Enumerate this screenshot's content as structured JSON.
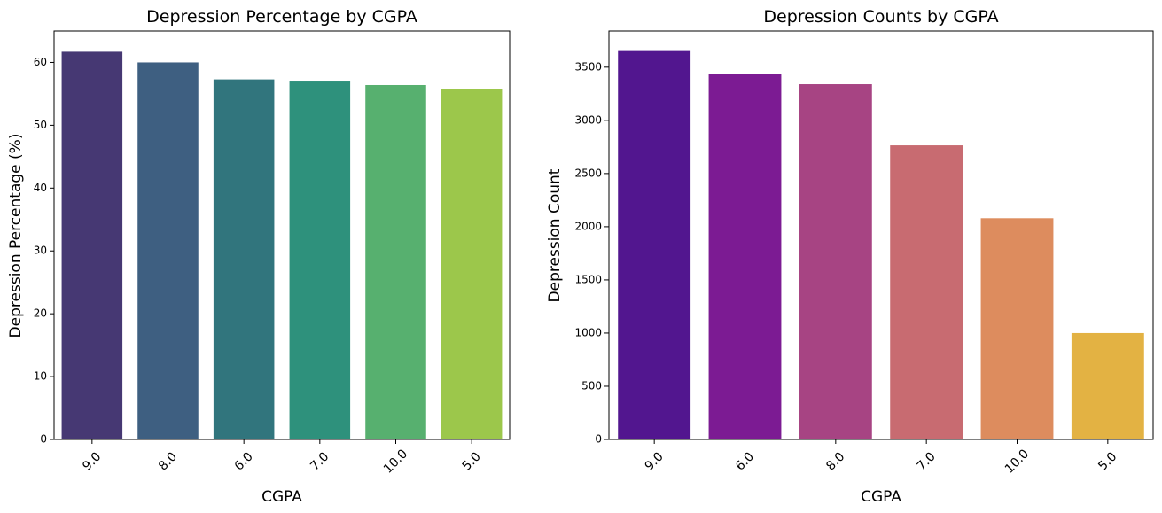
{
  "chart_data": [
    {
      "type": "bar",
      "title": "Depression Percentage by CGPA",
      "xlabel": "CGPA",
      "ylabel": "Depression Percentage (%)",
      "categories": [
        "9.0",
        "8.0",
        "6.0",
        "7.0",
        "10.0",
        "5.0"
      ],
      "values": [
        61.7,
        60.0,
        57.3,
        57.1,
        56.4,
        55.8
      ],
      "ylim": [
        0,
        65
      ],
      "yticks": [
        "0",
        "10",
        "20",
        "30",
        "40",
        "50",
        "60"
      ],
      "colors": [
        "#463873",
        "#3e5f81",
        "#31757d",
        "#2e917c",
        "#57b06f",
        "#9cc74b"
      ],
      "grid": false,
      "xtick_rotation": -45
    },
    {
      "type": "bar",
      "title": "Depression Counts by CGPA",
      "xlabel": "CGPA",
      "ylabel": "Depression Count",
      "categories": [
        "9.0",
        "6.0",
        "8.0",
        "7.0",
        "10.0",
        "5.0"
      ],
      "values": [
        3660,
        3440,
        3340,
        2765,
        2080,
        1000
      ],
      "ylim": [
        0,
        3840
      ],
      "yticks": [
        "0",
        "500",
        "1000",
        "1500",
        "2000",
        "2500",
        "3000",
        "3500"
      ],
      "colors": [
        "#52168f",
        "#7c1b93",
        "#a74483",
        "#c86b71",
        "#dd8c5e",
        "#e3b243"
      ],
      "grid": false,
      "xtick_rotation": -45
    }
  ]
}
